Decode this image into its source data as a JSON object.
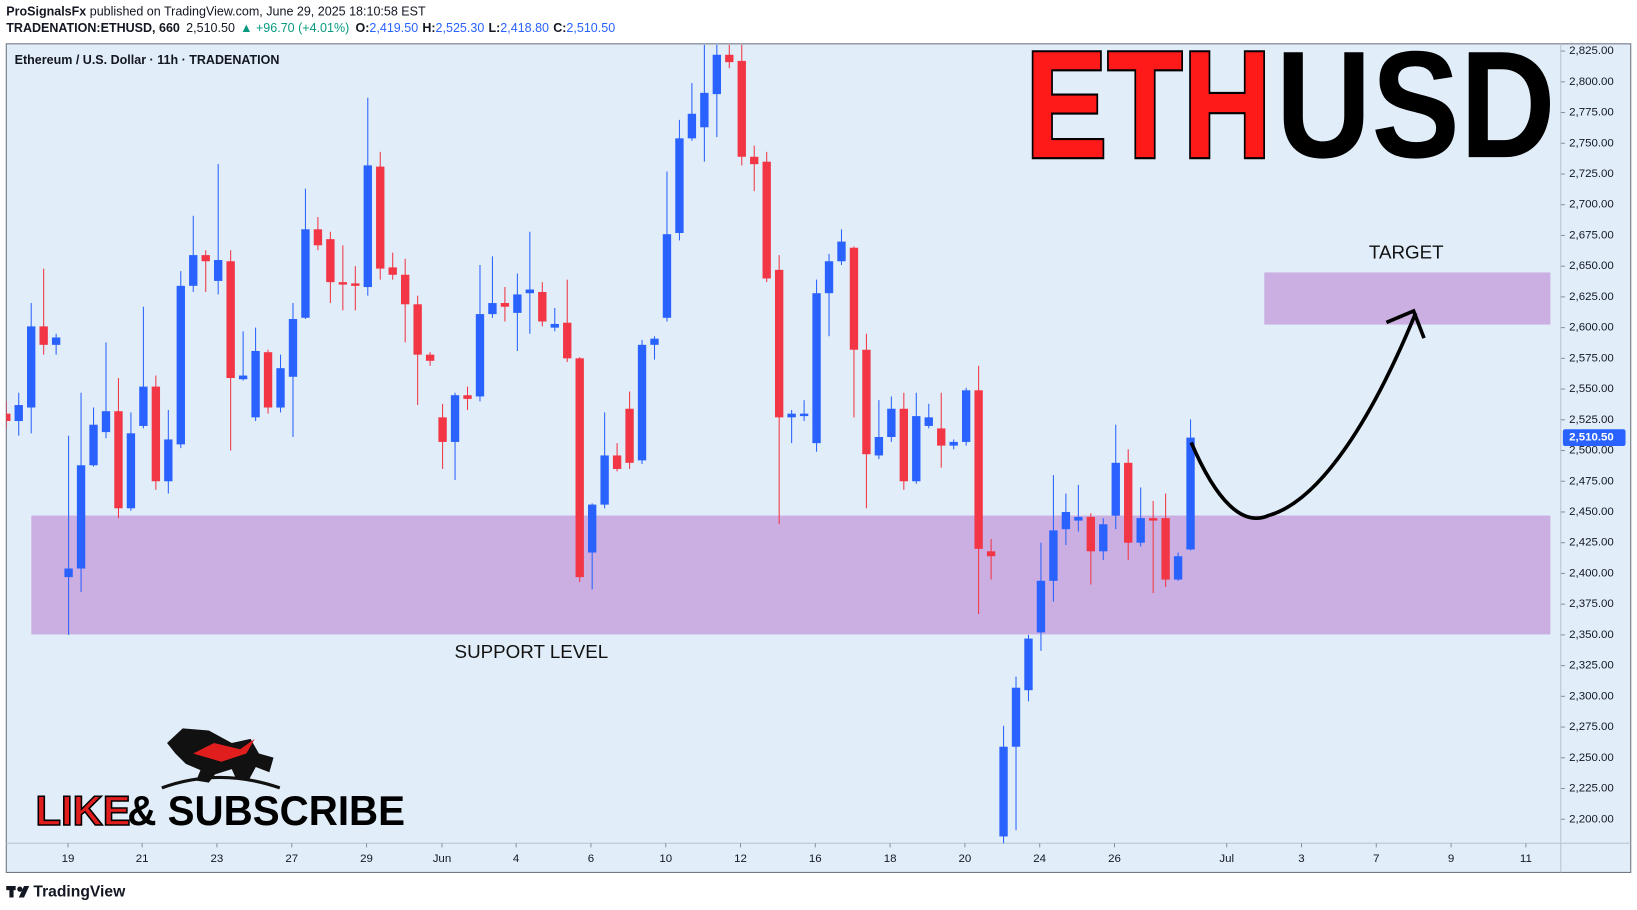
{
  "header": {
    "author": "ProSignalsFx",
    "published": "published on TradingView.com, June 29, 2025 18:10:58 EST",
    "symbol": "TRADENATION:ETHUSD, 660",
    "price": "2,510.50",
    "change": "▲ +96.70 (+4.01%)",
    "ohlc": [
      {
        "label": "O:",
        "value": "2,419.50"
      },
      {
        "label": "H:",
        "value": "2,525.30"
      },
      {
        "label": "L:",
        "value": "2,418.80"
      },
      {
        "label": "C:",
        "value": "2,510.50"
      }
    ]
  },
  "chart_data": {
    "type": "candlestick",
    "title": "Ethereum / U.S. Dollar · 11h · TRADENATION",
    "up_color": "#2962ff",
    "down_color": "#f23645",
    "candles": [
      [
        2530,
        2540,
        2518,
        2524
      ],
      [
        2524,
        2547,
        2512,
        2537
      ],
      [
        2535,
        2620,
        2514,
        2601
      ],
      [
        2601,
        2648,
        2578,
        2586
      ],
      [
        2586,
        2595,
        2578,
        2592
      ],
      [
        2397,
        2512,
        2350,
        2404
      ],
      [
        2404,
        2547,
        2385,
        2488
      ],
      [
        2488,
        2535,
        2487,
        2521
      ],
      [
        2515,
        2588,
        2510,
        2532
      ],
      [
        2532,
        2559,
        2445,
        2453
      ],
      [
        2453,
        2531,
        2451,
        2514
      ],
      [
        2520,
        2617,
        2518,
        2552
      ],
      [
        2552,
        2561,
        2468,
        2475
      ],
      [
        2475,
        2533,
        2465,
        2509
      ],
      [
        2505,
        2646,
        2502,
        2634
      ],
      [
        2634,
        2691,
        2629,
        2659
      ],
      [
        2659,
        2663,
        2629,
        2654
      ],
      [
        2638,
        2733,
        2627,
        2655
      ],
      [
        2654,
        2663,
        2500,
        2559
      ],
      [
        2558,
        2597,
        2557,
        2561
      ],
      [
        2527,
        2600,
        2524,
        2581
      ],
      [
        2580,
        2582,
        2530,
        2535
      ],
      [
        2535,
        2578,
        2531,
        2567
      ],
      [
        2560,
        2620,
        2511,
        2607
      ],
      [
        2608,
        2713,
        2607,
        2680
      ],
      [
        2680,
        2690,
        2663,
        2667
      ],
      [
        2672,
        2678,
        2620,
        2637
      ],
      [
        2637,
        2667,
        2614,
        2635
      ],
      [
        2636,
        2650,
        2614,
        2634
      ],
      [
        2633,
        2787,
        2626,
        2732
      ],
      [
        2731,
        2743,
        2639,
        2648
      ],
      [
        2649,
        2661,
        2639,
        2643
      ],
      [
        2643,
        2656,
        2588,
        2619
      ],
      [
        2619,
        2626,
        2537,
        2578
      ],
      [
        2578,
        2580,
        2569,
        2573
      ],
      [
        2527,
        2538,
        2485,
        2507
      ],
      [
        2507,
        2547,
        2476,
        2545
      ],
      [
        2545,
        2552,
        2533,
        2542
      ],
      [
        2544,
        2651,
        2540,
        2611
      ],
      [
        2611,
        2658,
        2608,
        2620
      ],
      [
        2620,
        2633,
        2605,
        2617
      ],
      [
        2612,
        2644,
        2581,
        2627
      ],
      [
        2628,
        2678,
        2595,
        2631
      ],
      [
        2629,
        2637,
        2601,
        2605
      ],
      [
        2600,
        2616,
        2597,
        2603
      ],
      [
        2604,
        2639,
        2572,
        2575
      ],
      [
        2575,
        2576,
        2393,
        2397
      ],
      [
        2417,
        2457,
        2387,
        2456
      ],
      [
        2456,
        2531,
        2453,
        2496
      ],
      [
        2496,
        2506,
        2483,
        2485
      ],
      [
        2534,
        2548,
        2485,
        2490
      ],
      [
        2492,
        2590,
        2489,
        2586
      ],
      [
        2586,
        2593,
        2574,
        2591
      ],
      [
        2608,
        2727,
        2605,
        2676
      ],
      [
        2677,
        2769,
        2671,
        2754
      ],
      [
        2754,
        2799,
        2752,
        2774
      ],
      [
        2763,
        2830,
        2735,
        2791
      ],
      [
        2790,
        2830,
        2755,
        2822
      ],
      [
        2822,
        2830,
        2811,
        2816
      ],
      [
        2817,
        2830,
        2732,
        2739
      ],
      [
        2739,
        2748,
        2711,
        2733
      ],
      [
        2735,
        2743,
        2637,
        2640
      ],
      [
        2647,
        2659,
        2440,
        2527
      ],
      [
        2527,
        2533,
        2506,
        2530
      ],
      [
        2528,
        2541,
        2524,
        2530
      ],
      [
        2506,
        2639,
        2499,
        2628
      ],
      [
        2628,
        2660,
        2593,
        2654
      ],
      [
        2654,
        2680,
        2651,
        2670
      ],
      [
        2665,
        2666,
        2527,
        2582
      ],
      [
        2582,
        2595,
        2453,
        2497
      ],
      [
        2496,
        2541,
        2493,
        2511
      ],
      [
        2511,
        2544,
        2507,
        2534
      ],
      [
        2534,
        2547,
        2468,
        2475
      ],
      [
        2475,
        2547,
        2473,
        2528
      ],
      [
        2520,
        2538,
        2518,
        2527
      ],
      [
        2518,
        2547,
        2486,
        2504
      ],
      [
        2504,
        2509,
        2501,
        2507
      ],
      [
        2507,
        2551,
        2504,
        2549
      ],
      [
        2549,
        2569,
        2367,
        2420
      ],
      [
        2418,
        2428,
        2395,
        2414
      ],
      [
        2186,
        2276,
        2180,
        2259
      ],
      [
        2259,
        2316,
        2191,
        2307
      ],
      [
        2305,
        2350,
        2296,
        2347
      ],
      [
        2352,
        2425,
        2337,
        2394
      ],
      [
        2394,
        2480,
        2377,
        2435
      ],
      [
        2436,
        2465,
        2423,
        2450
      ],
      [
        2443,
        2472,
        2434,
        2446
      ],
      [
        2446,
        2449,
        2391,
        2418
      ],
      [
        2418,
        2445,
        2411,
        2440
      ],
      [
        2447,
        2521,
        2436,
        2490
      ],
      [
        2490,
        2501,
        2411,
        2425
      ],
      [
        2425,
        2470,
        2422,
        2445
      ],
      [
        2445,
        2459,
        2384,
        2443
      ],
      [
        2445,
        2465,
        2389,
        2395
      ],
      [
        2395,
        2417,
        2394,
        2414
      ],
      [
        2419.5,
        2525.3,
        2418.8,
        2510.5
      ]
    ],
    "xlim": [
      0,
      124.7
    ],
    "xticks": [
      {
        "value": 4.95,
        "label": "19"
      },
      {
        "value": 10.9,
        "label": "21"
      },
      {
        "value": 16.9,
        "label": "23"
      },
      {
        "value": 22.9,
        "label": "27"
      },
      {
        "value": 28.9,
        "label": "29"
      },
      {
        "value": 34.95,
        "label": "Jun"
      },
      {
        "value": 40.9,
        "label": "4"
      },
      {
        "value": 46.9,
        "label": "6"
      },
      {
        "value": 52.9,
        "label": "10"
      },
      {
        "value": 58.9,
        "label": "12"
      },
      {
        "value": 64.9,
        "label": "16"
      },
      {
        "value": 70.9,
        "label": "18"
      },
      {
        "value": 76.9,
        "label": "20"
      },
      {
        "value": 82.9,
        "label": "24"
      },
      {
        "value": 88.9,
        "label": "26"
      },
      {
        "value": 97.9,
        "label": "Jul"
      },
      {
        "value": 103.9,
        "label": "3"
      },
      {
        "value": 109.9,
        "label": "7"
      },
      {
        "value": 115.9,
        "label": "9"
      },
      {
        "value": 121.9,
        "label": "11"
      }
    ],
    "ylim": [
      2180.5,
      2830.9
    ],
    "yticks": [
      {
        "value": 2200,
        "label": "2,200.00"
      },
      {
        "value": 2225,
        "label": "2,225.00"
      },
      {
        "value": 2250,
        "label": "2,250.00"
      },
      {
        "value": 2275,
        "label": "2,275.00"
      },
      {
        "value": 2300,
        "label": "2,300.00"
      },
      {
        "value": 2325,
        "label": "2,325.00"
      },
      {
        "value": 2350,
        "label": "2,350.00"
      },
      {
        "value": 2375,
        "label": "2,375.00"
      },
      {
        "value": 2400,
        "label": "2,400.00"
      },
      {
        "value": 2425,
        "label": "2,425.00"
      },
      {
        "value": 2450,
        "label": "2,450.00"
      },
      {
        "value": 2475,
        "label": "2,475.00"
      },
      {
        "value": 2500,
        "label": "2,500.00"
      },
      {
        "value": 2525,
        "label": "2,525.00"
      },
      {
        "value": 2550,
        "label": "2,550.00"
      },
      {
        "value": 2575,
        "label": "2,575.00"
      },
      {
        "value": 2600,
        "label": "2,600.00"
      },
      {
        "value": 2625,
        "label": "2,625.00"
      },
      {
        "value": 2650,
        "label": "2,650.00"
      },
      {
        "value": 2675,
        "label": "2,675.00"
      },
      {
        "value": 2700,
        "label": "2,700.00"
      },
      {
        "value": 2725,
        "label": "2,725.00"
      },
      {
        "value": 2750,
        "label": "2,750.00"
      },
      {
        "value": 2775,
        "label": "2,775.00"
      },
      {
        "value": 2800,
        "label": "2,800.00"
      },
      {
        "value": 2825,
        "label": "2,825.00"
      }
    ],
    "last_price": {
      "value": 2510.5,
      "label": "2,510.50"
    },
    "zones": [
      {
        "label": "SUPPORT LEVEL",
        "from": 2350.4,
        "to": 2447.1,
        "color": "#cbaee2"
      },
      {
        "label": "TARGET",
        "from": 2602.5,
        "to": 2644.9,
        "color": "#cbaee2"
      }
    ],
    "banner": {
      "left": "ETH",
      "right": "USD"
    }
  },
  "branding": {
    "like": "LIKE",
    "subscribe": "& SUBSCRIBE",
    "footer": "TradingView"
  }
}
